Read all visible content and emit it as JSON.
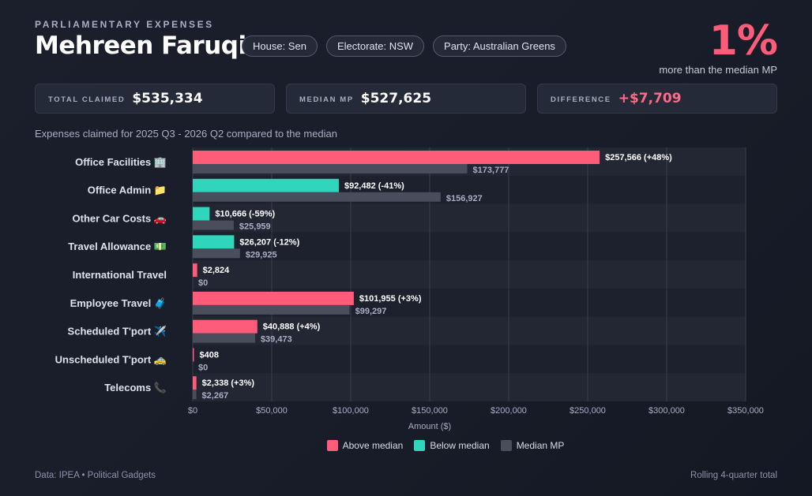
{
  "header": {
    "kicker": "PARLIAMENTARY EXPENSES",
    "name": "Mehreen Faruqi",
    "pills": [
      "House: Sen",
      "Electorate: NSW",
      "Party: Australian Greens"
    ],
    "headline_pct": "1%",
    "headline_sub": "more than the median MP"
  },
  "stats": {
    "total_label": "TOTAL CLAIMED",
    "total_value": "$535,334",
    "median_label": "MEDIAN MP",
    "median_value": "$527,625",
    "diff_label": "DIFFERENCE",
    "diff_value": "+$7,709"
  },
  "subtitle": "Expenses claimed for 2025 Q3 - 2026 Q2 compared to the median",
  "colors": {
    "above": "#ff5c7a",
    "below": "#2fd6bc",
    "median": "#4a4d5b"
  },
  "chart_data": {
    "type": "bar",
    "orientation": "horizontal",
    "xlabel": "Amount ($)",
    "xlim": [
      0,
      350000
    ],
    "xticks": [
      0,
      50000,
      100000,
      150000,
      200000,
      250000,
      300000,
      350000
    ],
    "xtick_labels": [
      "$0",
      "$50,000",
      "$100,000",
      "$150,000",
      "$200,000",
      "$250,000",
      "$300,000",
      "$350,000"
    ],
    "categories": [
      "Office Facilities 🏢",
      "Office Admin 📁",
      "Other Car Costs 🚗",
      "Travel Allowance 💵",
      "International Travel",
      "Employee Travel 🧳",
      "Scheduled T'port ✈️",
      "Unscheduled T'port 🚕",
      "Telecoms 📞"
    ],
    "series": [
      {
        "values": [
          257566,
          92482,
          10666,
          26207,
          2824,
          101955,
          40888,
          408,
          2338
        ],
        "labels": [
          "$257,566 (+48%)",
          "$92,482 (-41%)",
          "$10,666 (-59%)",
          "$26,207 (-12%)",
          "$2,824",
          "$101,955 (+3%)",
          "$40,888 (+4%)",
          "$408",
          "$2,338 (+3%)"
        ],
        "status": [
          "above",
          "below",
          "below",
          "below",
          "above",
          "above",
          "above",
          "above",
          "above"
        ]
      },
      {
        "name": "Median MP",
        "values": [
          173777,
          156927,
          25959,
          29925,
          0,
          99297,
          39473,
          0,
          2267
        ],
        "labels": [
          "$173,777",
          "$156,927",
          "$25,959",
          "$29,925",
          "$0",
          "$99,297",
          "$39,473",
          "$0",
          "$2,267"
        ]
      }
    ],
    "legend": [
      "Above median",
      "Below median",
      "Median MP"
    ],
    "legend_position": "bottom"
  },
  "footer": {
    "left": "Data: IPEA • Political Gadgets",
    "right": "Rolling 4-quarter total"
  }
}
